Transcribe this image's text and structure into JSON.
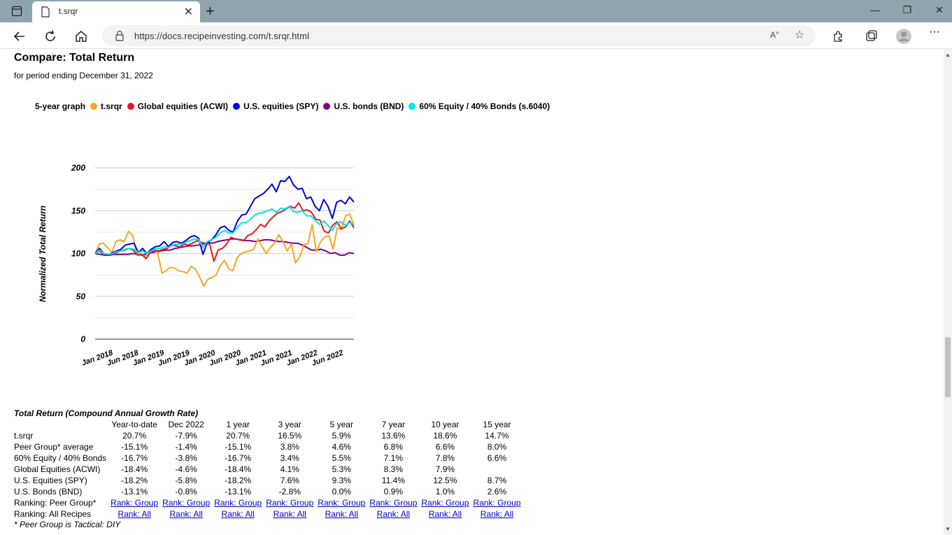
{
  "browser": {
    "tab_title": "t.srqr",
    "url": "https://docs.recipeinvesting.com/t.srqr.html"
  },
  "page": {
    "title": "Compare: Total Return",
    "subtitle": "for period ending December 31, 2022"
  },
  "legend": {
    "label": "5-year graph",
    "items": [
      {
        "name": "t.srqr",
        "color": "#f5a623"
      },
      {
        "name": "Global equities (ACWI)",
        "color": "#e31a1c"
      },
      {
        "name": "U.S. equities (SPY)",
        "color": "#0000d8"
      },
      {
        "name": "U.S. bonds (BND)",
        "color": "#800080"
      },
      {
        "name": "60% Equity / 40% Bonds (s.6040)",
        "color": "#00e5ee"
      }
    ]
  },
  "chart_data": {
    "type": "line",
    "ylabel": "Normalized Total Return",
    "ylim": [
      0,
      200
    ],
    "yticks": [
      "0",
      "50",
      "100",
      "150",
      "200"
    ],
    "xticks": [
      "Jan 2018",
      "Jun 2018",
      "Jan 2019",
      "Jun 2019",
      "Jan 2020",
      "Jun 2020",
      "Jan 2021",
      "Jun 2021",
      "Jan 2022",
      "Jun 2022"
    ],
    "series": [
      {
        "name": "U.S. bonds (BND)",
        "color": "#800080",
        "values": [
          100,
          99,
          98,
          98,
          99,
          99,
          99,
          99,
          100,
          99,
          98,
          100,
          101,
          102,
          103,
          104,
          104,
          106,
          107,
          108,
          109,
          109,
          110,
          111,
          113,
          112,
          114,
          115,
          116,
          117,
          117,
          116,
          115,
          115,
          114,
          115,
          116,
          116,
          115,
          114,
          114,
          113,
          112,
          112,
          110,
          107,
          104,
          104,
          105,
          103,
          100,
          101,
          98,
          98,
          101,
          100
        ]
      },
      {
        "name": "t.srqr",
        "color": "#f5a623",
        "values": [
          100,
          111,
          112,
          107,
          101,
          114,
          116,
          114,
          126,
          121,
          100,
          99,
          97,
          101,
          104,
          101,
          77,
          80,
          84,
          83,
          80,
          79,
          77,
          85,
          82,
          73,
          62,
          70,
          72,
          75,
          86,
          92,
          82,
          80,
          95,
          100,
          102,
          103,
          105,
          117,
          108,
          100,
          107,
          112,
          122,
          114,
          103,
          111,
          89,
          96,
          110,
          112,
          134,
          102,
          114,
          119,
          121,
          105,
          130,
          128,
          144,
          146,
          133
        ]
      },
      {
        "name": "Global equities (ACWI)",
        "color": "#e31a1c",
        "values": [
          100,
          103,
          99,
          98,
          100,
          101,
          103,
          104,
          106,
          104,
          98,
          99,
          94,
          101,
          104,
          103,
          105,
          106,
          110,
          109,
          108,
          111,
          110,
          112,
          115,
          113,
          112,
          111,
          91,
          104,
          106,
          111,
          119,
          117,
          116,
          115,
          121,
          123,
          128,
          134,
          131,
          138,
          143,
          147,
          149,
          152,
          155,
          153,
          159,
          150,
          151,
          148,
          140,
          139,
          126,
          124,
          133,
          137,
          129,
          131,
          138,
          130
        ]
      },
      {
        "name": "U.S. equities (SPY)",
        "color": "#0000d8",
        "values": [
          100,
          106,
          100,
          98,
          101,
          103,
          105,
          110,
          111,
          112,
          101,
          106,
          100,
          105,
          108,
          109,
          114,
          108,
          113,
          114,
          112,
          115,
          119,
          121,
          118,
          99,
          113,
          116,
          122,
          130,
          132,
          127,
          125,
          138,
          145,
          146,
          155,
          164,
          167,
          170,
          175,
          181,
          172,
          185,
          184,
          190,
          180,
          175,
          176,
          164,
          166,
          155,
          150,
          163,
          155,
          141,
          160,
          162,
          158,
          166,
          160
        ]
      },
      {
        "name": "60% Equity / 40% Bonds (s.6040)",
        "color": "#00e5ee",
        "values": [
          100,
          104,
          100,
          99,
          100,
          102,
          103,
          105,
          106,
          105,
          101,
          103,
          100,
          103,
          106,
          106,
          108,
          107,
          110,
          111,
          111,
          113,
          115,
          117,
          116,
          107,
          114,
          116,
          119,
          124,
          127,
          124,
          124,
          131,
          136,
          136,
          140,
          145,
          147,
          148,
          150,
          152,
          148,
          153,
          152,
          155,
          149,
          148,
          150,
          144,
          144,
          139,
          134,
          138,
          133,
          127,
          135,
          137,
          133,
          136,
          134
        ]
      }
    ]
  },
  "returns_table": {
    "caption": "Total Return (Compound Annual Growth Rate)",
    "columns": [
      "Year-to-date",
      "Dec 2022",
      "1 year",
      "3 year",
      "5 year",
      "7 year",
      "10 year",
      "15 year"
    ],
    "rows": [
      {
        "label": "t.srqr",
        "values": [
          "20.7%",
          "-7.9%",
          "20.7%",
          "16.5%",
          "5.9%",
          "13.6%",
          "18.6%",
          "14.7%"
        ]
      },
      {
        "label": "Peer Group* average",
        "values": [
          "-15.1%",
          "-1.4%",
          "-15.1%",
          "3.8%",
          "4.6%",
          "6.8%",
          "6.6%",
          "8.0%"
        ]
      },
      {
        "label": "60% Equity / 40% Bonds",
        "values": [
          "-16.7%",
          "-3.8%",
          "-16.7%",
          "3.4%",
          "5.5%",
          "7.1%",
          "7.8%",
          "6.6%"
        ]
      },
      {
        "label": "Global Equities (ACWI)",
        "values": [
          "-18.4%",
          "-4.6%",
          "-18.4%",
          "4.1%",
          "5.3%",
          "8.3%",
          "7.9%",
          ""
        ]
      },
      {
        "label": "U.S. Equities (SPY)",
        "values": [
          "-18.2%",
          "-5.8%",
          "-18.2%",
          "7.6%",
          "9.3%",
          "11.4%",
          "12.5%",
          "8.7%"
        ]
      },
      {
        "label": "U.S. Bonds (BND)",
        "values": [
          "-13.1%",
          "-0.8%",
          "-13.1%",
          "-2.8%",
          "0.0%",
          "0.9%",
          "1.0%",
          "2.6%"
        ]
      }
    ],
    "ranking_rows": [
      {
        "label": "Ranking: Peer Group*",
        "link": "Rank: Group"
      },
      {
        "label": "Ranking: All Recipes",
        "link": "Rank: All"
      }
    ],
    "footnote": "* Peer Group is Tactical: DIY"
  }
}
